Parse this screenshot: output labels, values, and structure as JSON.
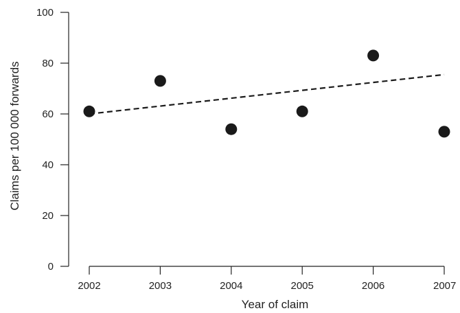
{
  "chart_data": {
    "type": "scatter",
    "title": "",
    "xlabel": "Year of claim",
    "ylabel": "Claims per 100 000 forwards",
    "xlim": [
      2002,
      2007
    ],
    "ylim": [
      0,
      100
    ],
    "x_ticks": [
      "2002",
      "2003",
      "2004",
      "2005",
      "2006",
      "2007"
    ],
    "y_ticks": [
      "0",
      "20",
      "40",
      "60",
      "80",
      "100"
    ],
    "grid": false,
    "series": [
      {
        "marker": "circle",
        "color": "#1a1a1a",
        "points": [
          {
            "x": 2002,
            "y": 61
          },
          {
            "x": 2003,
            "y": 73
          },
          {
            "x": 2004,
            "y": 54
          },
          {
            "x": 2005,
            "y": 61
          },
          {
            "x": 2006,
            "y": 83
          },
          {
            "x": 2007,
            "y": 53
          }
        ]
      }
    ],
    "trend_line": {
      "style": "dashed",
      "color": "#1a1a1a",
      "start": {
        "x": 2002,
        "y": 60
      },
      "end": {
        "x": 2007,
        "y": 75.5
      }
    }
  }
}
